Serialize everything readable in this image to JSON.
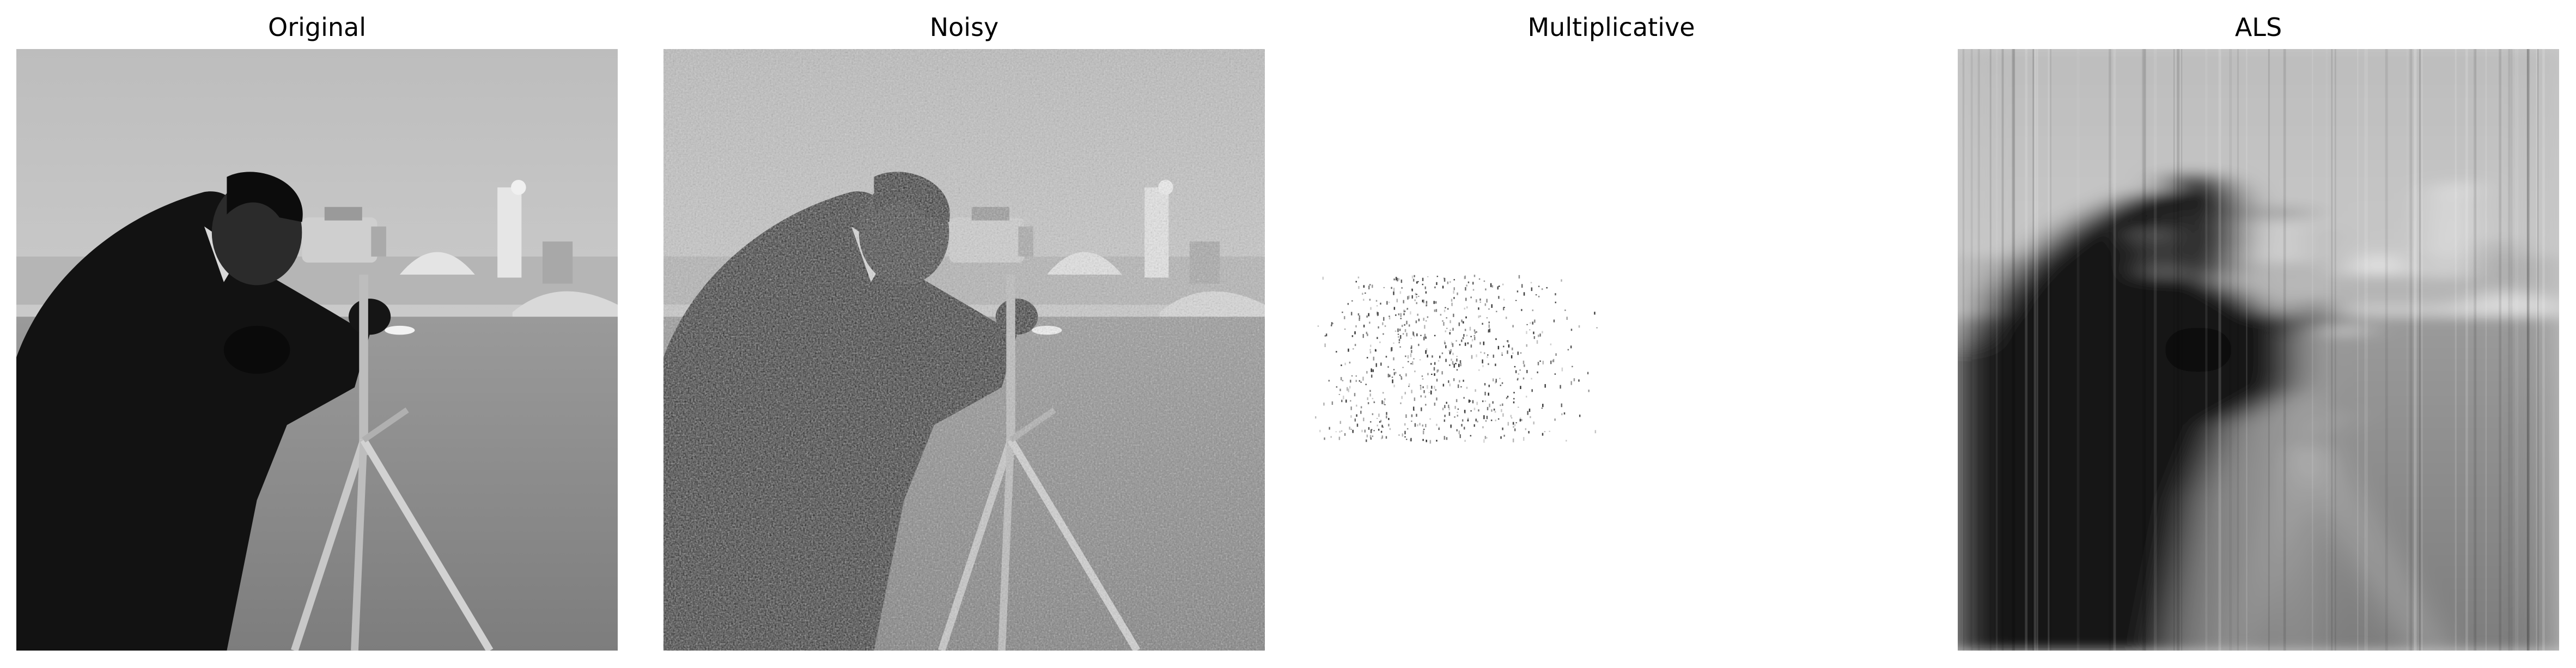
{
  "figure": {
    "panels": [
      {
        "title": "Original"
      },
      {
        "title": "Noisy"
      },
      {
        "title": "Multiplicative"
      },
      {
        "title": "ALS"
      }
    ]
  }
}
